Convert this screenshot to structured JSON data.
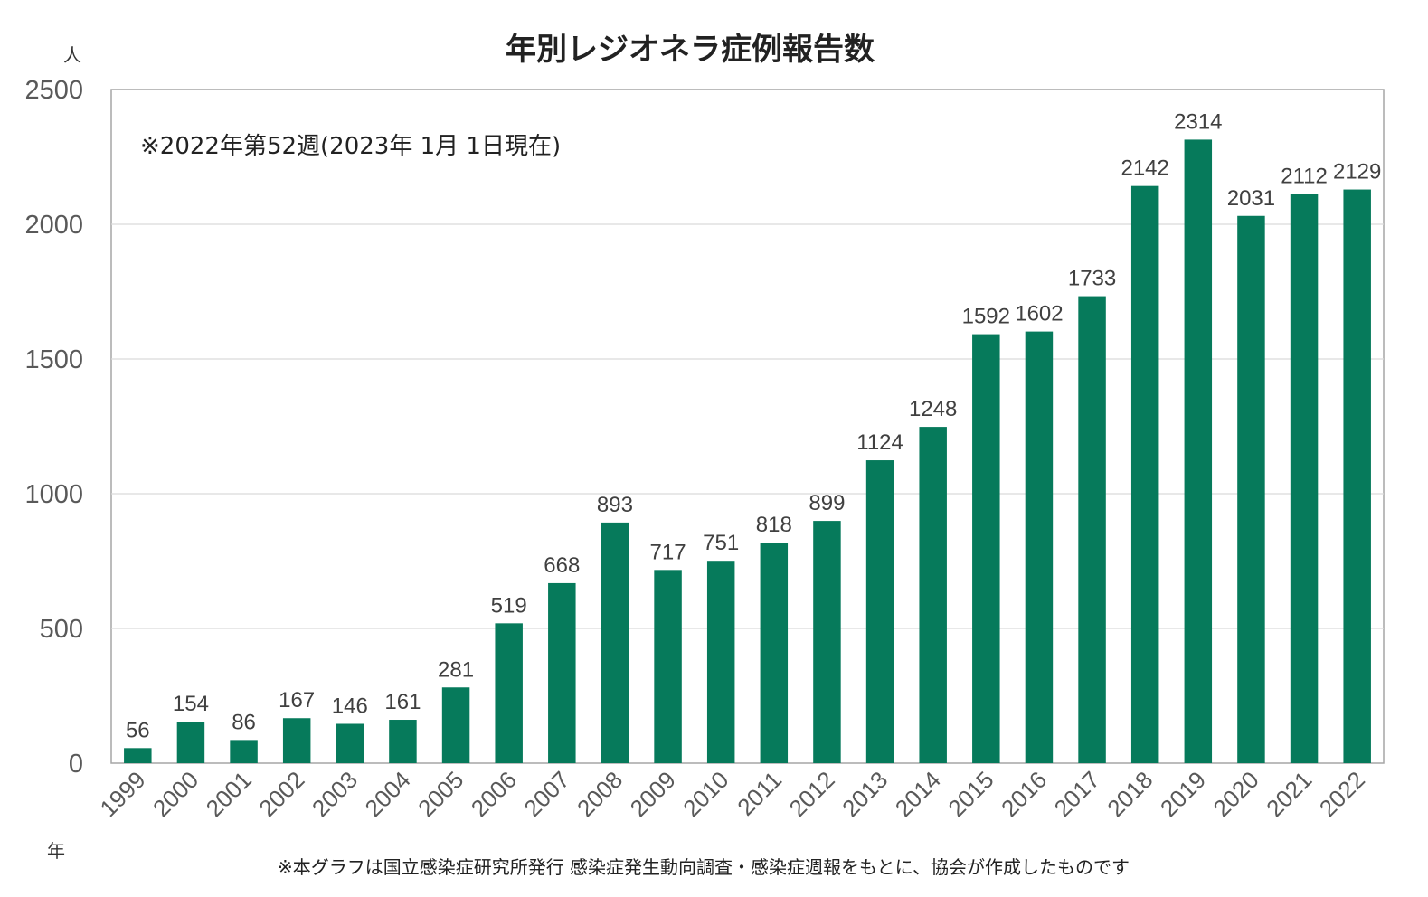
{
  "chart_data": {
    "type": "bar",
    "title": "年別レジオネラ症例報告数",
    "ylabel": "人",
    "xlabel": "年",
    "note": "※2022年第52週(2023年 1月 1日現在)",
    "source": "※本グラフは国立感染症研究所発行 感染症発生動向調査・感染症週報をもとに、協会が作成したものです",
    "ylim": [
      0,
      2500
    ],
    "yticks": [
      0,
      500,
      1000,
      1500,
      2000,
      2500
    ],
    "grid": true,
    "bar_color": "#067a5b",
    "categories": [
      "1999",
      "2000",
      "2001",
      "2002",
      "2003",
      "2004",
      "2005",
      "2006",
      "2007",
      "2008",
      "2009",
      "2010",
      "2011",
      "2012",
      "2013",
      "2014",
      "2015",
      "2016",
      "2017",
      "2018",
      "2019",
      "2020",
      "2021",
      "2022"
    ],
    "values": [
      56,
      154,
      86,
      167,
      146,
      161,
      281,
      519,
      668,
      893,
      717,
      751,
      818,
      899,
      1124,
      1248,
      1592,
      1602,
      1733,
      2142,
      2314,
      2031,
      2112,
      2129
    ]
  }
}
